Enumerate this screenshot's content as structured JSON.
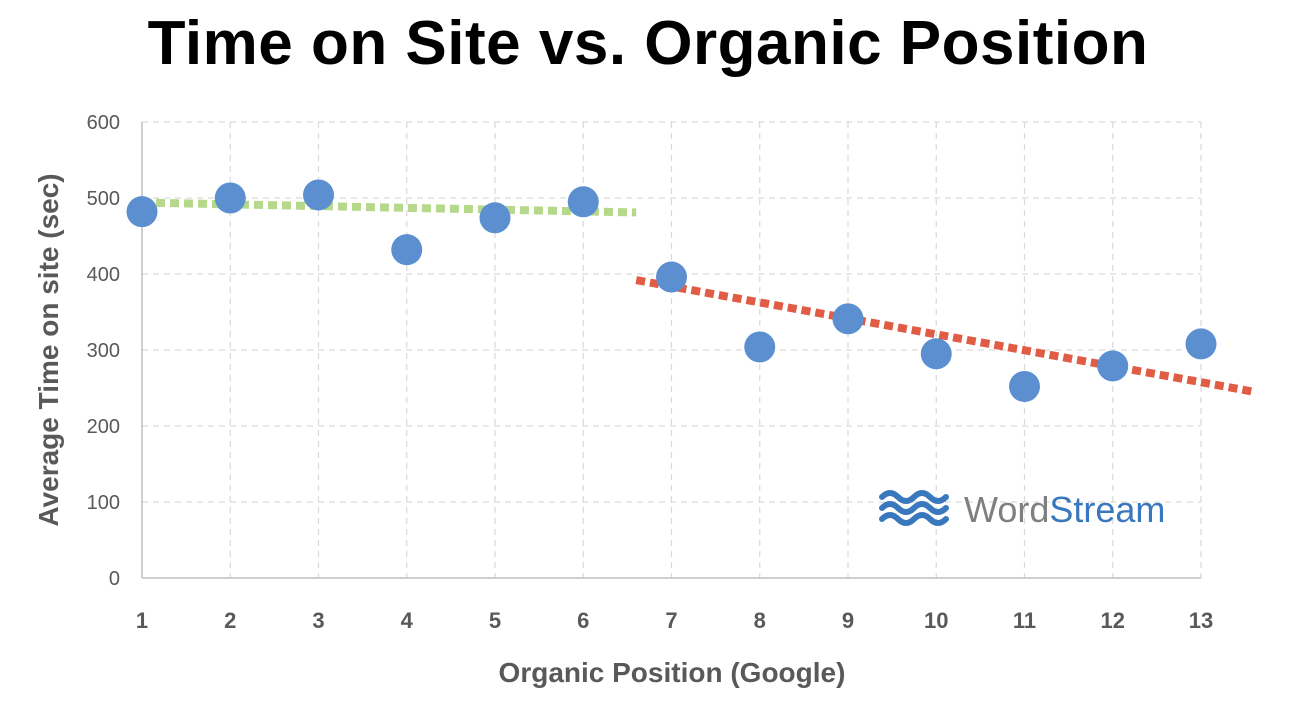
{
  "chart_data": {
    "type": "scatter",
    "title": "Time on Site vs. Organic Position",
    "xlabel": "Organic Position (Google)",
    "ylabel": "Average Time on site (sec)",
    "x": [
      1,
      2,
      3,
      4,
      5,
      6,
      7,
      8,
      9,
      10,
      11,
      12,
      13
    ],
    "series": [
      {
        "values": [
          482,
          500,
          504,
          432,
          474,
          495,
          396,
          304,
          341,
          295,
          252,
          279,
          308
        ]
      }
    ],
    "xlim": [
      1,
      13
    ],
    "ylim": [
      0,
      600
    ],
    "yticks": [
      0,
      100,
      200,
      300,
      400,
      500,
      600
    ],
    "xticks": [
      1,
      2,
      3,
      4,
      5,
      6,
      7,
      8,
      9,
      10,
      11,
      12,
      13
    ],
    "trendlines": [
      {
        "x": [
          1,
          6.6
        ],
        "y": [
          494,
          481
        ]
      },
      {
        "x": [
          6.6,
          13.6
        ],
        "y": [
          392,
          245
        ]
      }
    ],
    "grid": true,
    "legend": "none"
  },
  "logo": {
    "word1": "Word",
    "word2": "Stream"
  },
  "colors": {
    "point": "#5B8FD0",
    "trend_early": "#B5D88A",
    "trend_late": "#E05C45",
    "grid": "#D9D9D9",
    "axis_text": "#595959",
    "logo_gray": "#7F7F7F",
    "logo_blue": "#3A78BE"
  }
}
